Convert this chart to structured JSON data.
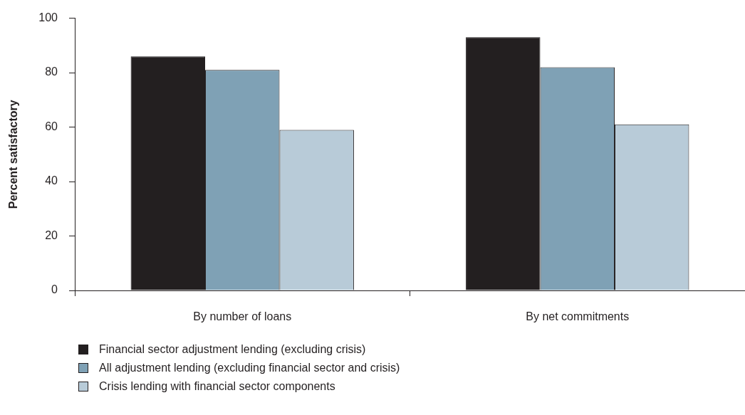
{
  "chart_data": {
    "type": "bar",
    "ylabel": "Percent satisfactory",
    "categories": [
      "By number of loans",
      "By net commitments"
    ],
    "series": [
      {
        "name": "Financial sector adjustment lending (excluding crisis)",
        "color": "#231f20",
        "values": [
          86,
          93
        ]
      },
      {
        "name": "All adjustment lending (excluding financial sector and crisis)",
        "color": "#7fa1b5",
        "values": [
          81,
          82
        ]
      },
      {
        "name": "Crisis lending with financial sector components",
        "color": "#b8cbd8",
        "values": [
          59,
          61
        ]
      }
    ],
    "ylim": [
      0,
      100
    ],
    "yticks": [
      0,
      20,
      40,
      60,
      80,
      100
    ],
    "grid": false,
    "legend": "bottom left"
  }
}
